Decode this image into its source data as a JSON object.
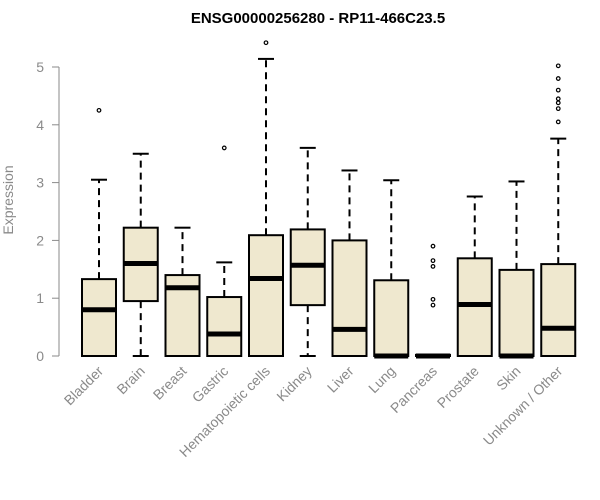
{
  "chart_data": {
    "type": "boxplot",
    "title": "ENSG00000256280 - RP11-466C23.5",
    "ylabel": "Expression",
    "xlabel": "",
    "ylim": [
      0,
      5.5
    ],
    "yticks": [
      0,
      1,
      2,
      3,
      4,
      5
    ],
    "grid": false,
    "box_fill": "#efe8cf",
    "box_stroke": "#000000",
    "categories": [
      "Bladder",
      "Brain",
      "Breast",
      "Gastric",
      "Hematopoietic cells",
      "Kidney",
      "Liver",
      "Lung",
      "Pancreas",
      "Prostate",
      "Skin",
      "Unknown / Other"
    ],
    "boxes": [
      {
        "whisker_low": 0,
        "q1": 0,
        "median": 0.8,
        "q3": 1.33,
        "whisker_high": 3.05,
        "outliers": [
          4.25
        ]
      },
      {
        "whisker_low": 0,
        "q1": 0.95,
        "median": 1.6,
        "q3": 2.22,
        "whisker_high": 3.5,
        "outliers": []
      },
      {
        "whisker_low": 0,
        "q1": 0,
        "median": 1.18,
        "q3": 1.4,
        "whisker_high": 2.22,
        "outliers": []
      },
      {
        "whisker_low": 0,
        "q1": 0,
        "median": 0.38,
        "q3": 1.02,
        "whisker_high": 1.62,
        "outliers": [
          3.6
        ]
      },
      {
        "whisker_low": 0,
        "q1": 0,
        "median": 1.34,
        "q3": 2.09,
        "whisker_high": 5.14,
        "outliers": [
          5.42
        ]
      },
      {
        "whisker_low": 0,
        "q1": 0.88,
        "median": 1.57,
        "q3": 2.19,
        "whisker_high": 3.6,
        "outliers": []
      },
      {
        "whisker_low": 0,
        "q1": 0,
        "median": 0.46,
        "q3": 2.0,
        "whisker_high": 3.21,
        "outliers": []
      },
      {
        "whisker_low": 0,
        "q1": 0,
        "median": 0.0,
        "q3": 1.31,
        "whisker_high": 3.04,
        "outliers": []
      },
      {
        "whisker_low": 0,
        "q1": 0,
        "median": 0.0,
        "q3": 0.02,
        "whisker_high": 0.02,
        "outliers": [
          0.88,
          0.98,
          1.55,
          1.65,
          1.9
        ]
      },
      {
        "whisker_low": 0,
        "q1": 0,
        "median": 0.89,
        "q3": 1.69,
        "whisker_high": 2.76,
        "outliers": []
      },
      {
        "whisker_low": 0,
        "q1": 0,
        "median": 0.0,
        "q3": 1.49,
        "whisker_high": 3.02,
        "outliers": []
      },
      {
        "whisker_low": 0,
        "q1": 0,
        "median": 0.48,
        "q3": 1.59,
        "whisker_high": 3.76,
        "outliers": [
          4.05,
          4.28,
          4.38,
          4.45,
          4.6,
          4.8,
          5.02
        ]
      }
    ]
  }
}
